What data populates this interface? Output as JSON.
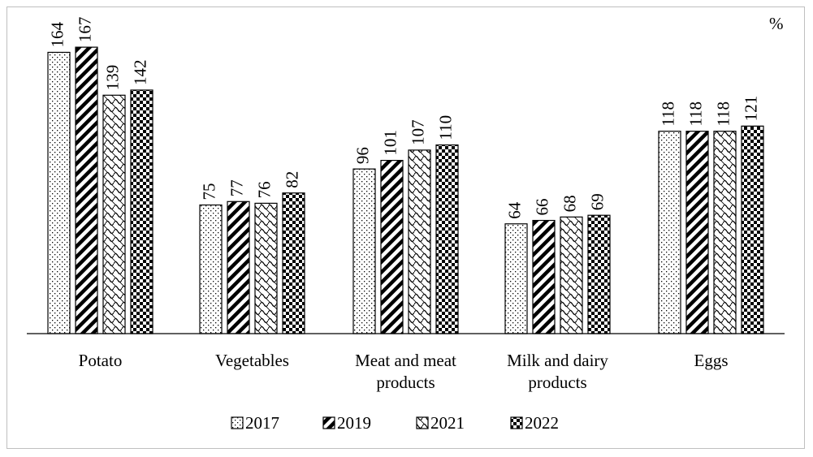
{
  "chart_data": {
    "type": "bar",
    "unit_label": "%",
    "categories": [
      [
        "Potato"
      ],
      [
        "Vegetables"
      ],
      [
        "Meat and meat",
        "products"
      ],
      [
        "Milk and dairy",
        "products"
      ],
      [
        "Eggs"
      ]
    ],
    "series": [
      {
        "name": "2017",
        "pattern": "dots",
        "values": [
          164,
          75,
          96,
          64,
          118
        ]
      },
      {
        "name": "2019",
        "pattern": "diagonal",
        "values": [
          167,
          77,
          101,
          66,
          118
        ]
      },
      {
        "name": "2021",
        "pattern": "weave",
        "values": [
          139,
          76,
          107,
          68,
          118
        ]
      },
      {
        "name": "2022",
        "pattern": "checker",
        "values": [
          142,
          82,
          110,
          69,
          121
        ]
      }
    ],
    "ylim": [
      0,
      175
    ],
    "grid": false,
    "legend_position": "bottom",
    "colors": {
      "bar_fill": "#ffffff",
      "pattern": "#000000",
      "outline": "#000000"
    }
  }
}
